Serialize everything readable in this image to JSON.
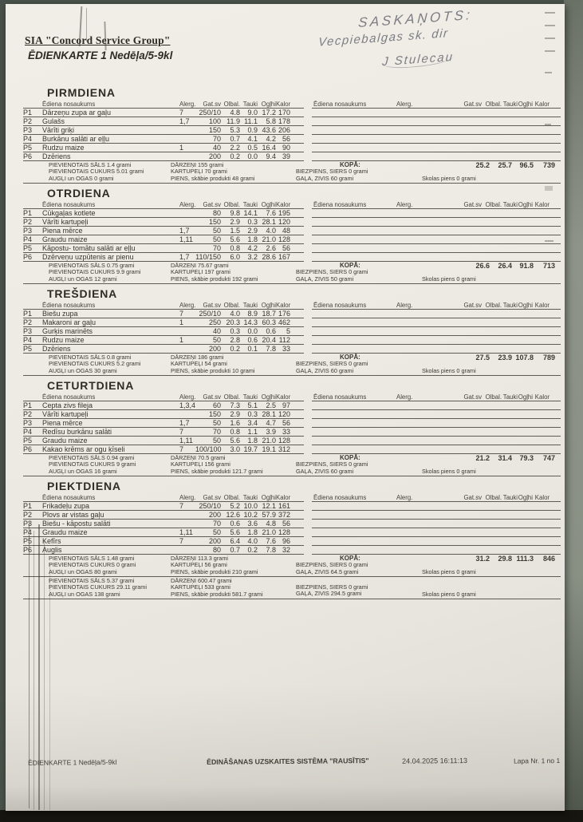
{
  "header": {
    "company": "SIA \"Concord Service Group\"",
    "title": "ĒDIENKARTE 1 Nedēļa/5-9kl"
  },
  "handwriting": {
    "line1": "SASKAŅOTS:",
    "line2": "Vecpiebalgas sk. dir",
    "line3": "J Stulecau"
  },
  "columns": {
    "name": "Ēdiena nosaukums",
    "alerg": "Alerg.",
    "gatsv": "Gat.sv",
    "olbal": "Olbal.",
    "tauki": "Tauki",
    "oglhi": "Ogļhi",
    "kalor": "Kalor"
  },
  "days": [
    {
      "name": "PIRMDIENA",
      "rows": [
        {
          "code": "P1",
          "dish": "Dārzeņu zupa ar gaļu",
          "alerg": "7",
          "gatsv": "250/10",
          "olbal": "4.8",
          "tauki": "9.0",
          "oglhi": "17.2",
          "kalor": "170"
        },
        {
          "code": "P2",
          "dish": "Gulašs",
          "alerg": "1,7",
          "gatsv": "100",
          "olbal": "11.9",
          "tauki": "11.1",
          "oglhi": "5.8",
          "kalor": "178"
        },
        {
          "code": "P3",
          "dish": "Vārīti griķi",
          "alerg": "",
          "gatsv": "150",
          "olbal": "5.3",
          "tauki": "0.9",
          "oglhi": "43.6",
          "kalor": "206"
        },
        {
          "code": "P4",
          "dish": "Burkānu salāti ar eļļu",
          "alerg": "",
          "gatsv": "70",
          "olbal": "0.7",
          "tauki": "4.1",
          "oglhi": "4.2",
          "kalor": "56"
        },
        {
          "code": "P5",
          "dish": "Rudzu maize",
          "alerg": "1",
          "gatsv": "40",
          "olbal": "2.2",
          "tauki": "0.5",
          "oglhi": "16.4",
          "kalor": "90"
        },
        {
          "code": "P6",
          "dish": "Dzēriens",
          "alerg": "",
          "gatsv": "200",
          "olbal": "0.2",
          "tauki": "0.0",
          "oglhi": "9.4",
          "kalor": "39"
        }
      ],
      "footer": {
        "left": [
          "PIEVIENOTAIS SĀLS 1.4 grami",
          "PIEVIENOTAIS CUKURS 5.01 grami",
          "AUGĻI un OGAS 0 grami"
        ],
        "mid": [
          "DĀRZEŅI 155 grami",
          "KARTUPEĻI 70 grami",
          "PIENS, skābie produkti 48 grami"
        ],
        "kopa": "KOPĀ:",
        "right": [
          "BIEZPIENS, SIERS 0 grami",
          "GAĻA, ZIVIS 60 grami"
        ],
        "skolas": "Skolas piens 0 grami",
        "totals": {
          "olbal": "25.2",
          "tauki": "25.7",
          "oglhi": "96.5",
          "kalor": "739"
        }
      }
    },
    {
      "name": "OTRDIENA",
      "rows": [
        {
          "code": "P1",
          "dish": "Cūkgaļas kotlete",
          "alerg": "",
          "gatsv": "80",
          "olbal": "9.8",
          "tauki": "14.1",
          "oglhi": "7.6",
          "kalor": "195"
        },
        {
          "code": "P2",
          "dish": "Vārīti kartupeļi",
          "alerg": "",
          "gatsv": "150",
          "olbal": "2.9",
          "tauki": "0.3",
          "oglhi": "28.1",
          "kalor": "120"
        },
        {
          "code": "P3",
          "dish": "Piena mērce",
          "alerg": "1,7",
          "gatsv": "50",
          "olbal": "1.5",
          "tauki": "2.9",
          "oglhi": "4.0",
          "kalor": "48"
        },
        {
          "code": "P4",
          "dish": "Graudu maize",
          "alerg": "1,11",
          "gatsv": "50",
          "olbal": "5.6",
          "tauki": "1.8",
          "oglhi": "21.0",
          "kalor": "128"
        },
        {
          "code": "P5",
          "dish": "Kāpostu- tomātu salāti  ar eļļu",
          "alerg": "",
          "gatsv": "70",
          "olbal": "0.8",
          "tauki": "4.2",
          "oglhi": "2.6",
          "kalor": "56"
        },
        {
          "code": "P6",
          "dish": "Dzērveņu uzpūtenis ar pienu",
          "alerg": "1,7",
          "gatsv": "110/150",
          "olbal": "6.0",
          "tauki": "3.2",
          "oglhi": "28.6",
          "kalor": "167"
        }
      ],
      "footer": {
        "left": [
          "PIEVIENOTAIS SĀLS 0.75 grami",
          "PIEVIENOTAIS CUKURS 9.9 grami",
          "AUGĻI un OGAS 12 grami"
        ],
        "mid": [
          "DĀRZEŅI 75.67 grami",
          "KARTUPEĻI 197 grami",
          "PIENS, skābie produkti 192 grami"
        ],
        "kopa": "KOPĀ:",
        "right": [
          "BIEZPIENS, SIERS 0 grami",
          "GAĻA, ZIVIS 50 grami"
        ],
        "skolas": "Skolas piens 0 grami",
        "totals": {
          "olbal": "26.6",
          "tauki": "26.4",
          "oglhi": "91.8",
          "kalor": "713"
        }
      }
    },
    {
      "name": "TREŠDIENA",
      "rows": [
        {
          "code": "P1",
          "dish": "Biešu zupa",
          "alerg": "7",
          "gatsv": "250/10",
          "olbal": "4.0",
          "tauki": "8.9",
          "oglhi": "18.7",
          "kalor": "176"
        },
        {
          "code": "P2",
          "dish": "Makaroni  ar gaļu",
          "alerg": "1",
          "gatsv": "250",
          "olbal": "20.3",
          "tauki": "14.3",
          "oglhi": "60.3",
          "kalor": "462"
        },
        {
          "code": "P3",
          "dish": "Gurķis marinēts",
          "alerg": "",
          "gatsv": "40",
          "olbal": "0.3",
          "tauki": "0.0",
          "oglhi": "0.6",
          "kalor": "5"
        },
        {
          "code": "P4",
          "dish": "Rudzu maize",
          "alerg": "1",
          "gatsv": "50",
          "olbal": "2.8",
          "tauki": "0.6",
          "oglhi": "20.4",
          "kalor": "112"
        },
        {
          "code": "P5",
          "dish": "Dzēriens",
          "alerg": "",
          "gatsv": "200",
          "olbal": "0.2",
          "tauki": "0.1",
          "oglhi": "7.8",
          "kalor": "33"
        }
      ],
      "footer": {
        "left": [
          "PIEVIENOTAIS SĀLS 0.8 grami",
          "PIEVIENOTAIS CUKURS 5.2 grami",
          "AUGĻI un OGAS 30 grami"
        ],
        "mid": [
          "DĀRZEŅI 186 grami",
          "KARTUPEĻI 54 grami",
          "PIENS, skābie produkti 10 grami"
        ],
        "kopa": "KOPĀ:",
        "right": [
          "BIEZPIENS, SIERS 0 grami",
          "GAĻA, ZIVIS 60 grami"
        ],
        "skolas": "Skolas piens 0 grami",
        "totals": {
          "olbal": "27.5",
          "tauki": "23.9",
          "oglhi": "107.8",
          "kalor": "789"
        }
      }
    },
    {
      "name": "CETURTDIENA",
      "rows": [
        {
          "code": "P1",
          "dish": "Cepta zivs fileja",
          "alerg": "1,3,4",
          "gatsv": "60",
          "olbal": "7.3",
          "tauki": "5.1",
          "oglhi": "2.5",
          "kalor": "97"
        },
        {
          "code": "P2",
          "dish": "Vārīti kartupeļi",
          "alerg": "",
          "gatsv": "150",
          "olbal": "2.9",
          "tauki": "0.3",
          "oglhi": "28.1",
          "kalor": "120"
        },
        {
          "code": "P3",
          "dish": "Piena mērce",
          "alerg": "1,7",
          "gatsv": "50",
          "olbal": "1.6",
          "tauki": "3.4",
          "oglhi": "4.7",
          "kalor": "56"
        },
        {
          "code": "P4",
          "dish": "Redīsu burkānu salāti",
          "alerg": "7",
          "gatsv": "70",
          "olbal": "0.8",
          "tauki": "1.1",
          "oglhi": "3.9",
          "kalor": "33"
        },
        {
          "code": "P5",
          "dish": "Graudu maize",
          "alerg": "1,11",
          "gatsv": "50",
          "olbal": "5.6",
          "tauki": "1.8",
          "oglhi": "21.0",
          "kalor": "128"
        },
        {
          "code": "P6",
          "dish": "Kakao krēms ar ogu ķīseli",
          "alerg": "7",
          "gatsv": "100/100",
          "olbal": "3.0",
          "tauki": "19.7",
          "oglhi": "19.1",
          "kalor": "312"
        }
      ],
      "footer": {
        "left": [
          "PIEVIENOTAIS SĀLS 0.94 grami",
          "PIEVIENOTAIS CUKURS 9 grami",
          "AUGĻI un OGAS 16 grami"
        ],
        "mid": [
          "DĀRZEŅI 70.5 grami",
          "KARTUPEĻI 156 grami",
          "PIENS, skābie produkti 121.7 grami"
        ],
        "kopa": "KOPĀ:",
        "right": [
          "BIEZPIENS, SIERS 0 grami",
          "GAĻA, ZIVIS 60 grami"
        ],
        "skolas": "Skolas piens 0 grami",
        "totals": {
          "olbal": "21.2",
          "tauki": "31.4",
          "oglhi": "79.3",
          "kalor": "747"
        }
      }
    },
    {
      "name": "PIEKTDIENA",
      "rows": [
        {
          "code": "P1",
          "dish": "Frikadeļu zupa",
          "alerg": "7",
          "gatsv": "250/10",
          "olbal": "5.2",
          "tauki": "10.0",
          "oglhi": "12.1",
          "kalor": "161"
        },
        {
          "code": "P2",
          "dish": "Plovs ar vistas gaļu",
          "alerg": "",
          "gatsv": "200",
          "olbal": "12.6",
          "tauki": "10.2",
          "oglhi": "57.9",
          "kalor": "372"
        },
        {
          "code": "P3",
          "dish": "Biešu - kāpostu  salāti",
          "alerg": "",
          "gatsv": "70",
          "olbal": "0.6",
          "tauki": "3.6",
          "oglhi": "4.8",
          "kalor": "56"
        },
        {
          "code": "P4",
          "dish": "Graudu maize",
          "alerg": "1,11",
          "gatsv": "50",
          "olbal": "5.6",
          "tauki": "1.8",
          "oglhi": "21.0",
          "kalor": "128"
        },
        {
          "code": "P5",
          "dish": "Kefīrs",
          "alerg": "7",
          "gatsv": "200",
          "olbal": "6.4",
          "tauki": "4.0",
          "oglhi": "7.6",
          "kalor": "96"
        },
        {
          "code": "P6",
          "dish": "Auglis",
          "alerg": "",
          "gatsv": "80",
          "olbal": "0.7",
          "tauki": "0.2",
          "oglhi": "7.8",
          "kalor": "32"
        }
      ],
      "footer": {
        "left": [
          "PIEVIENOTAIS SĀLS 1.48 grami",
          "PIEVIENOTAIS CUKURS 0 grami",
          "AUGĻI un OGAS 80 grami"
        ],
        "mid": [
          "DĀRZEŅI 113.3 grami",
          "KARTUPEĻI 56 grami",
          "PIENS, skābie produkti 210 grami"
        ],
        "kopa": "KOPĀ:",
        "right": [
          "BIEZPIENS, SIERS 0 grami",
          "GAĻA, ZIVIS 64.5 grami"
        ],
        "skolas": "Skolas piens 0 grami",
        "totals": {
          "olbal": "31.2",
          "tauki": "29.8",
          "oglhi": "111.3",
          "kalor": "846"
        }
      }
    }
  ],
  "week_totals": {
    "left": [
      "PIEVIENOTAIS SĀLS 5.37 grami",
      "PIEVIENOTAIS CUKURS 29.11 grami",
      "AUGĻI un OGAS 138 grami"
    ],
    "mid": [
      "DĀRZEŅI 600.47 grami",
      "KARTUPEĻI 533 grami",
      "PIENS, skābie produkti 581.7 grami"
    ],
    "right": [
      "BIEZPIENS, SIERS 0 grami",
      "GAĻA, ZIVIS 294.5 grami"
    ],
    "skolas": "Skolas piens 0 grami"
  },
  "page_footer": {
    "left": "ĒDIENKARTE 1 Nedēļa/5-9kl",
    "center": "ĒDINĀŠANAS UZSKAITES SISTĒMA \"RAUSĪTIS\"",
    "datetime": "24.04.2025 16:11:13",
    "page": "Lapa Nr. 1 no 1"
  }
}
